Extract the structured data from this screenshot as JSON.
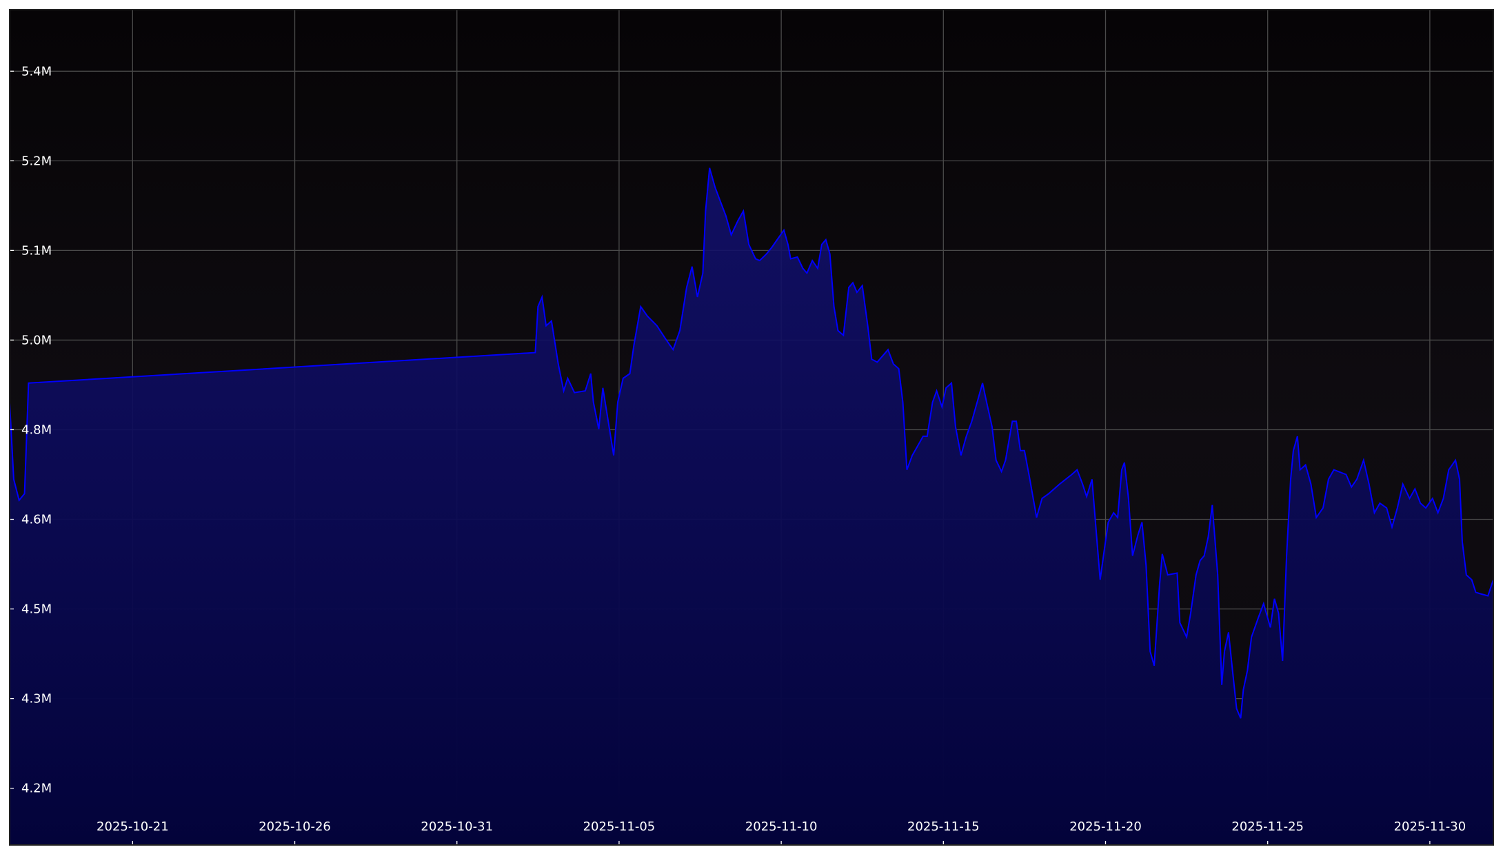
{
  "chart_data": {
    "type": "area",
    "title": "",
    "xlabel": "",
    "ylabel": "",
    "xlim": [
      "2025-10-17 05:00",
      "2025-12-01 23:00"
    ],
    "ylim": [
      4.105,
      5.503
    ],
    "y_unit": "millions",
    "grid": true,
    "legend": "none",
    "colors": {
      "line": "#0000ff",
      "fill": "#0a0a6e",
      "background": "#0b090d",
      "grid": "#4a4a4a",
      "text": "#ffffff"
    },
    "yticks": [
      {
        "value": 4.2,
        "label": "4.2M"
      },
      {
        "value": 4.35,
        "label": "4.3M"
      },
      {
        "value": 4.5,
        "label": "4.5M"
      },
      {
        "value": 4.65,
        "label": "4.6M"
      },
      {
        "value": 4.8,
        "label": "4.8M"
      },
      {
        "value": 4.95,
        "label": "5.0M"
      },
      {
        "value": 5.1,
        "label": "5.1M"
      },
      {
        "value": 5.25,
        "label": "5.2M"
      },
      {
        "value": 5.4,
        "label": "5.4M"
      }
    ],
    "xticks": [
      "2025-10-21",
      "2025-10-26",
      "2025-10-31",
      "2025-11-05",
      "2025-11-10",
      "2025-11-15",
      "2025-11-20",
      "2025-11-25",
      "2025-11-30"
    ],
    "points": [
      [
        "2025-10-17 05:00",
        4.845
      ],
      [
        "2025-10-17 08:00",
        4.717
      ],
      [
        "2025-10-17 12:00",
        4.682
      ],
      [
        "2025-10-17 16:00",
        4.693
      ],
      [
        "2025-10-17 19:00",
        4.878
      ],
      [
        "2025-11-02 10:00",
        4.929
      ],
      [
        "2025-11-02 12:00",
        5.006
      ],
      [
        "2025-11-02 15:00",
        5.022
      ],
      [
        "2025-11-02 18:00",
        4.974
      ],
      [
        "2025-11-02 22:00",
        4.982
      ],
      [
        "2025-11-03 03:00",
        4.91
      ],
      [
        "2025-11-03 07:00",
        4.865
      ],
      [
        "2025-11-03 10:00",
        4.886
      ],
      [
        "2025-11-03 15:00",
        4.862
      ],
      [
        "2025-11-03 23:00",
        4.865
      ],
      [
        "2025-11-04 03:00",
        4.894
      ],
      [
        "2025-11-04 05:00",
        4.846
      ],
      [
        "2025-11-04 09:00",
        4.801
      ],
      [
        "2025-11-04 12:00",
        4.87
      ],
      [
        "2025-11-04 16:00",
        4.814
      ],
      [
        "2025-11-04 20:00",
        4.757
      ],
      [
        "2025-11-04 23:00",
        4.846
      ],
      [
        "2025-11-05 03:00",
        4.886
      ],
      [
        "2025-11-05 08:00",
        4.894
      ],
      [
        "2025-11-05 11:00",
        4.942
      ],
      [
        "2025-11-05 16:00",
        5.006
      ],
      [
        "2025-11-05 21:00",
        4.99
      ],
      [
        "2025-11-06 04:00",
        4.974
      ],
      [
        "2025-11-06 11:00",
        4.95
      ],
      [
        "2025-11-06 16:00",
        4.934
      ],
      [
        "2025-11-06 21:00",
        4.966
      ],
      [
        "2025-11-07 02:00",
        5.038
      ],
      [
        "2025-11-07 06:00",
        5.073
      ],
      [
        "2025-11-07 10:00",
        5.022
      ],
      [
        "2025-11-07 14:00",
        5.062
      ],
      [
        "2025-11-07 16:00",
        5.166
      ],
      [
        "2025-11-07 19:00",
        5.238
      ],
      [
        "2025-11-07 23:00",
        5.206
      ],
      [
        "2025-11-08 03:00",
        5.182
      ],
      [
        "2025-11-08 07:00",
        5.158
      ],
      [
        "2025-11-08 11:00",
        5.126
      ],
      [
        "2025-11-08 16:00",
        5.15
      ],
      [
        "2025-11-08 20:00",
        5.166
      ],
      [
        "2025-11-09 00:00",
        5.11
      ],
      [
        "2025-11-09 05:00",
        5.086
      ],
      [
        "2025-11-09 08:00",
        5.083
      ],
      [
        "2025-11-09 13:00",
        5.094
      ],
      [
        "2025-11-09 17:00",
        5.105
      ],
      [
        "2025-11-09 21:00",
        5.118
      ],
      [
        "2025-11-10 02:00",
        5.134
      ],
      [
        "2025-11-10 05:00",
        5.11
      ],
      [
        "2025-11-10 07:00",
        5.086
      ],
      [
        "2025-11-10 12:00",
        5.089
      ],
      [
        "2025-11-10 16:00",
        5.07
      ],
      [
        "2025-11-10 19:00",
        5.062
      ],
      [
        "2025-11-10 23:00",
        5.083
      ],
      [
        "2025-11-11 03:00",
        5.07
      ],
      [
        "2025-11-11 06:00",
        5.11
      ],
      [
        "2025-11-11 09:00",
        5.118
      ],
      [
        "2025-11-11 12:00",
        5.094
      ],
      [
        "2025-11-11 15:00",
        5.006
      ],
      [
        "2025-11-11 18:00",
        4.966
      ],
      [
        "2025-11-11 22:00",
        4.958
      ],
      [
        "2025-11-12 02:00",
        5.038
      ],
      [
        "2025-11-12 05:00",
        5.046
      ],
      [
        "2025-11-12 08:00",
        5.03
      ],
      [
        "2025-11-12 12:00",
        5.041
      ],
      [
        "2025-11-12 16:00",
        4.974
      ],
      [
        "2025-11-12 19:00",
        4.918
      ],
      [
        "2025-11-12 23:00",
        4.913
      ],
      [
        "2025-11-13 04:00",
        4.926
      ],
      [
        "2025-11-13 07:00",
        4.934
      ],
      [
        "2025-11-13 11:00",
        4.91
      ],
      [
        "2025-11-13 15:00",
        4.902
      ],
      [
        "2025-11-13 18:00",
        4.846
      ],
      [
        "2025-11-13 21:00",
        4.733
      ],
      [
        "2025-11-14 01:00",
        4.757
      ],
      [
        "2025-11-14 05:00",
        4.773
      ],
      [
        "2025-11-14 09:00",
        4.789
      ],
      [
        "2025-11-14 12:00",
        4.789
      ],
      [
        "2025-11-14 16:00",
        4.846
      ],
      [
        "2025-11-14 19:00",
        4.865
      ],
      [
        "2025-11-14 23:00",
        4.838
      ],
      [
        "2025-11-15 02:00",
        4.87
      ],
      [
        "2025-11-15 06:00",
        4.878
      ],
      [
        "2025-11-15 09:00",
        4.805
      ],
      [
        "2025-11-15 13:00",
        4.757
      ],
      [
        "2025-11-15 17:00",
        4.789
      ],
      [
        "2025-11-15 21:00",
        4.814
      ],
      [
        "2025-11-16 01:00",
        4.846
      ],
      [
        "2025-11-16 05:00",
        4.878
      ],
      [
        "2025-11-16 08:00",
        4.846
      ],
      [
        "2025-11-16 12:00",
        4.805
      ],
      [
        "2025-11-16 15:00",
        4.749
      ],
      [
        "2025-11-16 19:00",
        4.73
      ],
      [
        "2025-11-16 22:00",
        4.749
      ],
      [
        "2025-11-17 03:00",
        4.814
      ],
      [
        "2025-11-17 06:00",
        4.814
      ],
      [
        "2025-11-17 09:00",
        4.765
      ],
      [
        "2025-11-17 12:00",
        4.765
      ],
      [
        "2025-11-17 16:00",
        4.717
      ],
      [
        "2025-11-17 21:00",
        4.653
      ],
      [
        "2025-11-18 01:00",
        4.685
      ],
      [
        "2025-11-18 06:00",
        4.693
      ],
      [
        "2025-11-18 14:00",
        4.709
      ],
      [
        "2025-11-18 23:00",
        4.725
      ],
      [
        "2025-11-19 03:00",
        4.733
      ],
      [
        "2025-11-19 07:00",
        4.709
      ],
      [
        "2025-11-19 10:00",
        4.688
      ],
      [
        "2025-11-19 14:00",
        4.717
      ],
      [
        "2025-11-19 18:00",
        4.605
      ],
      [
        "2025-11-19 20:00",
        4.549
      ],
      [
        "2025-11-19 23:00",
        4.597
      ],
      [
        "2025-11-20 02:00",
        4.645
      ],
      [
        "2025-11-20 06:00",
        4.661
      ],
      [
        "2025-11-20 09:00",
        4.653
      ],
      [
        "2025-11-20 12:00",
        4.733
      ],
      [
        "2025-11-20 14:00",
        4.745
      ],
      [
        "2025-11-20 17:00",
        4.685
      ],
      [
        "2025-11-20 20:00",
        4.589
      ],
      [
        "2025-11-21 00:00",
        4.624
      ],
      [
        "2025-11-21 03:00",
        4.645
      ],
      [
        "2025-11-21 06:00",
        4.573
      ],
      [
        "2025-11-21 09:00",
        4.429
      ],
      [
        "2025-11-21 12:00",
        4.405
      ],
      [
        "2025-11-21 16:00",
        4.541
      ],
      [
        "2025-11-21 18:00",
        4.592
      ],
      [
        "2025-11-21 22:00",
        4.557
      ],
      [
        "2025-11-22 05:00",
        4.56
      ],
      [
        "2025-11-22 07:00",
        4.477
      ],
      [
        "2025-11-22 12:00",
        4.453
      ],
      [
        "2025-11-22 15:00",
        4.493
      ],
      [
        "2025-11-22 19:00",
        4.557
      ],
      [
        "2025-11-22 22:00",
        4.581
      ],
      [
        "2025-11-23 01:00",
        4.589
      ],
      [
        "2025-11-23 04:00",
        4.621
      ],
      [
        "2025-11-23 07:00",
        4.674
      ],
      [
        "2025-11-23 11:00",
        4.557
      ],
      [
        "2025-11-23 14:00",
        4.373
      ],
      [
        "2025-11-23 16:00",
        4.429
      ],
      [
        "2025-11-23 19:00",
        4.461
      ],
      [
        "2025-11-23 22:00",
        4.397
      ],
      [
        "2025-11-24 01:00",
        4.333
      ],
      [
        "2025-11-24 04:00",
        4.317
      ],
      [
        "2025-11-24 06:00",
        4.365
      ],
      [
        "2025-11-24 09:00",
        4.397
      ],
      [
        "2025-11-24 12:00",
        4.453
      ],
      [
        "2025-11-24 17:00",
        4.485
      ],
      [
        "2025-11-24 21:00",
        4.509
      ],
      [
        "2025-11-24 23:00",
        4.493
      ],
      [
        "2025-11-25 02:00",
        4.469
      ],
      [
        "2025-11-25 05:00",
        4.517
      ],
      [
        "2025-11-25 08:00",
        4.493
      ],
      [
        "2025-11-25 11:00",
        4.413
      ],
      [
        "2025-11-25 14:00",
        4.589
      ],
      [
        "2025-11-25 17:00",
        4.717
      ],
      [
        "2025-11-25 19:00",
        4.765
      ],
      [
        "2025-11-25 22:00",
        4.789
      ],
      [
        "2025-11-26 00:00",
        4.733
      ],
      [
        "2025-11-26 04:00",
        4.741
      ],
      [
        "2025-11-26 08:00",
        4.709
      ],
      [
        "2025-11-26 12:00",
        4.653
      ],
      [
        "2025-11-26 17:00",
        4.669
      ],
      [
        "2025-11-26 21:00",
        4.717
      ],
      [
        "2025-11-27 01:00",
        4.733
      ],
      [
        "2025-11-27 10:00",
        4.725
      ],
      [
        "2025-11-27 14:00",
        4.704
      ],
      [
        "2025-11-27 18:00",
        4.717
      ],
      [
        "2025-11-27 23:00",
        4.749
      ],
      [
        "2025-11-28 03:00",
        4.709
      ],
      [
        "2025-11-28 07:00",
        4.661
      ],
      [
        "2025-11-28 11:00",
        4.677
      ],
      [
        "2025-11-28 16:00",
        4.669
      ],
      [
        "2025-11-28 20:00",
        4.637
      ],
      [
        "2025-11-29 00:00",
        4.669
      ],
      [
        "2025-11-29 04:00",
        4.709
      ],
      [
        "2025-11-29 09:00",
        4.685
      ],
      [
        "2025-11-29 13:00",
        4.701
      ],
      [
        "2025-11-29 17:00",
        4.677
      ],
      [
        "2025-11-29 21:00",
        4.669
      ],
      [
        "2025-11-30 02:00",
        4.685
      ],
      [
        "2025-11-30 06:00",
        4.661
      ],
      [
        "2025-11-30 10:00",
        4.685
      ],
      [
        "2025-11-30 14:00",
        4.733
      ],
      [
        "2025-11-30 19:00",
        4.749
      ],
      [
        "2025-11-30 22:00",
        4.717
      ],
      [
        "2025-12-01 00:00",
        4.613
      ],
      [
        "2025-12-01 03:00",
        4.557
      ],
      [
        "2025-12-01 07:00",
        4.549
      ],
      [
        "2025-12-01 10:00",
        4.528
      ],
      [
        "2025-12-01 14:00",
        4.525
      ],
      [
        "2025-12-01 19:00",
        4.522
      ],
      [
        "2025-12-01 23:00",
        4.549
      ]
    ]
  }
}
